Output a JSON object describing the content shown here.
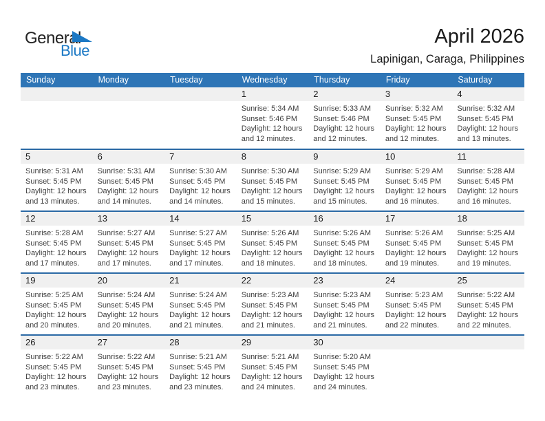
{
  "logo": {
    "word1": "General",
    "word2": "Blue"
  },
  "header": {
    "title": "April 2026",
    "subtitle": "Lapinigan, Caraga, Philippines"
  },
  "colors": {
    "header_blue": "#2E75B6",
    "separator_blue": "#2A69A5",
    "strip_gray": "#F0F0F0",
    "logo_blue": "#1B78C4"
  },
  "calendar": {
    "weekdays": [
      "Sunday",
      "Monday",
      "Tuesday",
      "Wednesday",
      "Thursday",
      "Friday",
      "Saturday"
    ],
    "weeks": [
      [
        {
          "day": ""
        },
        {
          "day": ""
        },
        {
          "day": ""
        },
        {
          "day": "1",
          "lines": [
            "Sunrise: 5:34 AM",
            "Sunset: 5:46 PM",
            "Daylight: 12 hours",
            "and 12 minutes."
          ]
        },
        {
          "day": "2",
          "lines": [
            "Sunrise: 5:33 AM",
            "Sunset: 5:46 PM",
            "Daylight: 12 hours",
            "and 12 minutes."
          ]
        },
        {
          "day": "3",
          "lines": [
            "Sunrise: 5:32 AM",
            "Sunset: 5:45 PM",
            "Daylight: 12 hours",
            "and 12 minutes."
          ]
        },
        {
          "day": "4",
          "lines": [
            "Sunrise: 5:32 AM",
            "Sunset: 5:45 PM",
            "Daylight: 12 hours",
            "and 13 minutes."
          ]
        }
      ],
      [
        {
          "day": "5",
          "lines": [
            "Sunrise: 5:31 AM",
            "Sunset: 5:45 PM",
            "Daylight: 12 hours",
            "and 13 minutes."
          ]
        },
        {
          "day": "6",
          "lines": [
            "Sunrise: 5:31 AM",
            "Sunset: 5:45 PM",
            "Daylight: 12 hours",
            "and 14 minutes."
          ]
        },
        {
          "day": "7",
          "lines": [
            "Sunrise: 5:30 AM",
            "Sunset: 5:45 PM",
            "Daylight: 12 hours",
            "and 14 minutes."
          ]
        },
        {
          "day": "8",
          "lines": [
            "Sunrise: 5:30 AM",
            "Sunset: 5:45 PM",
            "Daylight: 12 hours",
            "and 15 minutes."
          ]
        },
        {
          "day": "9",
          "lines": [
            "Sunrise: 5:29 AM",
            "Sunset: 5:45 PM",
            "Daylight: 12 hours",
            "and 15 minutes."
          ]
        },
        {
          "day": "10",
          "lines": [
            "Sunrise: 5:29 AM",
            "Sunset: 5:45 PM",
            "Daylight: 12 hours",
            "and 16 minutes."
          ]
        },
        {
          "day": "11",
          "lines": [
            "Sunrise: 5:28 AM",
            "Sunset: 5:45 PM",
            "Daylight: 12 hours",
            "and 16 minutes."
          ]
        }
      ],
      [
        {
          "day": "12",
          "lines": [
            "Sunrise: 5:28 AM",
            "Sunset: 5:45 PM",
            "Daylight: 12 hours",
            "and 17 minutes."
          ]
        },
        {
          "day": "13",
          "lines": [
            "Sunrise: 5:27 AM",
            "Sunset: 5:45 PM",
            "Daylight: 12 hours",
            "and 17 minutes."
          ]
        },
        {
          "day": "14",
          "lines": [
            "Sunrise: 5:27 AM",
            "Sunset: 5:45 PM",
            "Daylight: 12 hours",
            "and 17 minutes."
          ]
        },
        {
          "day": "15",
          "lines": [
            "Sunrise: 5:26 AM",
            "Sunset: 5:45 PM",
            "Daylight: 12 hours",
            "and 18 minutes."
          ]
        },
        {
          "day": "16",
          "lines": [
            "Sunrise: 5:26 AM",
            "Sunset: 5:45 PM",
            "Daylight: 12 hours",
            "and 18 minutes."
          ]
        },
        {
          "day": "17",
          "lines": [
            "Sunrise: 5:26 AM",
            "Sunset: 5:45 PM",
            "Daylight: 12 hours",
            "and 19 minutes."
          ]
        },
        {
          "day": "18",
          "lines": [
            "Sunrise: 5:25 AM",
            "Sunset: 5:45 PM",
            "Daylight: 12 hours",
            "and 19 minutes."
          ]
        }
      ],
      [
        {
          "day": "19",
          "lines": [
            "Sunrise: 5:25 AM",
            "Sunset: 5:45 PM",
            "Daylight: 12 hours",
            "and 20 minutes."
          ]
        },
        {
          "day": "20",
          "lines": [
            "Sunrise: 5:24 AM",
            "Sunset: 5:45 PM",
            "Daylight: 12 hours",
            "and 20 minutes."
          ]
        },
        {
          "day": "21",
          "lines": [
            "Sunrise: 5:24 AM",
            "Sunset: 5:45 PM",
            "Daylight: 12 hours",
            "and 21 minutes."
          ]
        },
        {
          "day": "22",
          "lines": [
            "Sunrise: 5:23 AM",
            "Sunset: 5:45 PM",
            "Daylight: 12 hours",
            "and 21 minutes."
          ]
        },
        {
          "day": "23",
          "lines": [
            "Sunrise: 5:23 AM",
            "Sunset: 5:45 PM",
            "Daylight: 12 hours",
            "and 21 minutes."
          ]
        },
        {
          "day": "24",
          "lines": [
            "Sunrise: 5:23 AM",
            "Sunset: 5:45 PM",
            "Daylight: 12 hours",
            "and 22 minutes."
          ]
        },
        {
          "day": "25",
          "lines": [
            "Sunrise: 5:22 AM",
            "Sunset: 5:45 PM",
            "Daylight: 12 hours",
            "and 22 minutes."
          ]
        }
      ],
      [
        {
          "day": "26",
          "lines": [
            "Sunrise: 5:22 AM",
            "Sunset: 5:45 PM",
            "Daylight: 12 hours",
            "and 23 minutes."
          ]
        },
        {
          "day": "27",
          "lines": [
            "Sunrise: 5:22 AM",
            "Sunset: 5:45 PM",
            "Daylight: 12 hours",
            "and 23 minutes."
          ]
        },
        {
          "day": "28",
          "lines": [
            "Sunrise: 5:21 AM",
            "Sunset: 5:45 PM",
            "Daylight: 12 hours",
            "and 23 minutes."
          ]
        },
        {
          "day": "29",
          "lines": [
            "Sunrise: 5:21 AM",
            "Sunset: 5:45 PM",
            "Daylight: 12 hours",
            "and 24 minutes."
          ]
        },
        {
          "day": "30",
          "lines": [
            "Sunrise: 5:20 AM",
            "Sunset: 5:45 PM",
            "Daylight: 12 hours",
            "and 24 minutes."
          ]
        },
        {
          "day": ""
        },
        {
          "day": ""
        }
      ]
    ]
  }
}
